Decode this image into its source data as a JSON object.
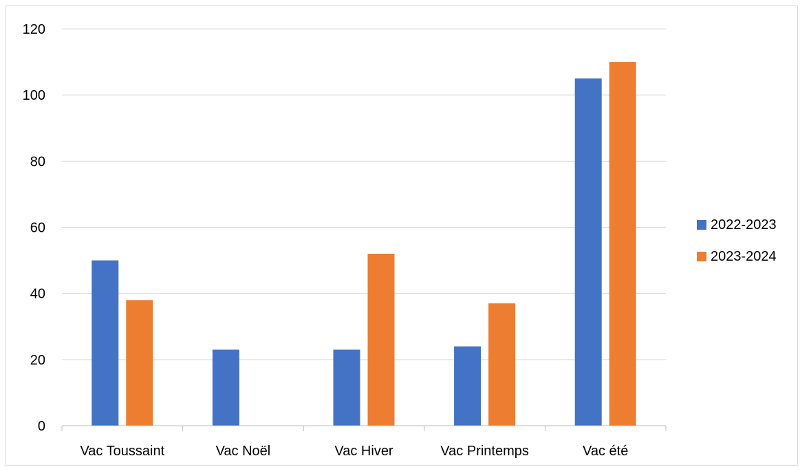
{
  "chart_data": {
    "type": "bar",
    "categories": [
      "Vac Toussaint",
      "Vac Noël",
      "Vac Hiver",
      "Vac Printemps",
      "Vac été"
    ],
    "series": [
      {
        "name": "2022-2023",
        "color": "#4472C4",
        "values": [
          50,
          23,
          23,
          24,
          105
        ]
      },
      {
        "name": "2023-2024",
        "color": "#ED7D31",
        "values": [
          38,
          null,
          52,
          37,
          110
        ]
      }
    ],
    "title": "",
    "xlabel": "",
    "ylabel": "",
    "ylim": [
      0,
      120
    ],
    "yticks": [
      "0",
      "20",
      "40",
      "60",
      "80",
      "100",
      "120"
    ],
    "grid": true,
    "legend": "right"
  }
}
